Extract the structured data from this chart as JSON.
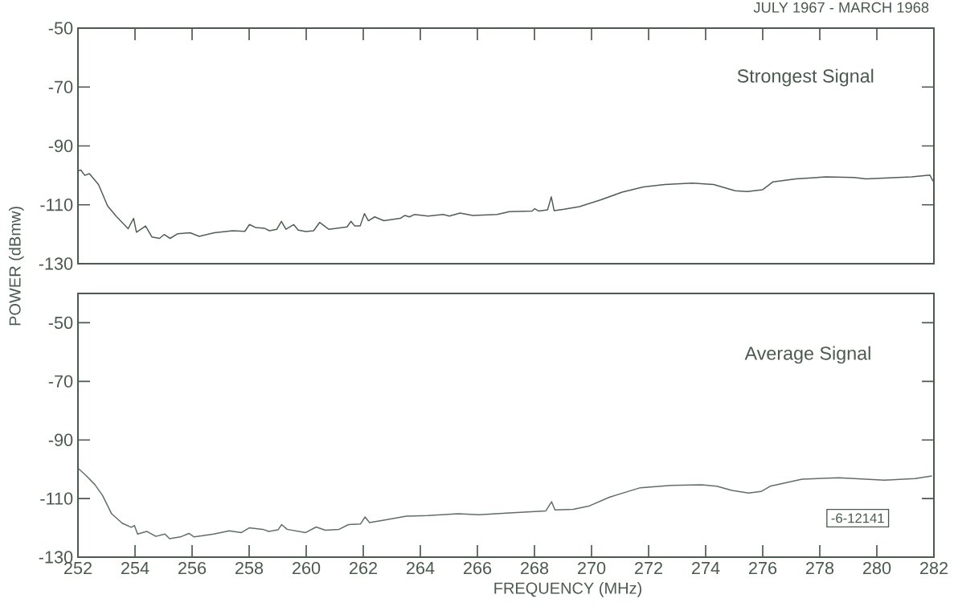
{
  "chart_data": [
    {
      "type": "line",
      "title": "JULY 1967 - MARCH 1968",
      "ylabel": "POWER (dBmw)",
      "annotations": [
        "Strongest Signal"
      ],
      "xlim": [
        252,
        282
      ],
      "ylim": [
        -130,
        -50
      ],
      "xticks": [
        252,
        254,
        256,
        258,
        260,
        262,
        264,
        266,
        268,
        270,
        272,
        274,
        276,
        278,
        280,
        282
      ],
      "yticks": [
        -130,
        -110,
        -90,
        -70,
        -50
      ],
      "tick_labels": "y",
      "series": [
        {
          "color": "#4f5f55",
          "x": [
            252.03,
            252.1,
            252.24,
            252.4,
            252.72,
            253.04,
            253.36,
            253.76,
            253.95,
            254.05,
            254.37,
            254.59,
            254.86,
            255.02,
            255.23,
            255.5,
            255.93,
            256.25,
            256.78,
            257.42,
            257.85,
            258.01,
            258.22,
            258.55,
            258.71,
            258.97,
            259.13,
            259.29,
            259.56,
            259.72,
            259.99,
            260.26,
            260.47,
            260.79,
            261.43,
            261.57,
            261.7,
            261.89,
            262.04,
            262.18,
            262.4,
            262.72,
            263.3,
            263.46,
            263.62,
            263.79,
            264.27,
            264.8,
            265.02,
            265.39,
            265.84,
            266.69,
            267.12,
            267.92,
            268.01,
            268.14,
            268.46,
            268.59,
            268.69,
            269.04,
            269.58,
            270.33,
            271.07,
            271.82,
            272.57,
            273.53,
            274.28,
            275.03,
            275.46,
            275.99,
            276.36,
            277.16,
            278.23,
            279.19,
            279.62,
            280.58,
            281.22,
            281.86,
            281.97
          ],
          "values": [
            -98.4,
            -98.2,
            -100,
            -99.4,
            -103.1,
            -110.4,
            -114.1,
            -118.1,
            -114.6,
            -119.3,
            -117.2,
            -120.9,
            -121.4,
            -120.1,
            -121.4,
            -119.8,
            -119.5,
            -120.7,
            -119.5,
            -118.8,
            -119,
            -116.7,
            -117.7,
            -118,
            -118.8,
            -118.3,
            -115.6,
            -118.3,
            -116.7,
            -118.6,
            -119.1,
            -118.8,
            -116,
            -118.3,
            -117.5,
            -115.6,
            -117.2,
            -117.2,
            -113,
            -115.4,
            -114.1,
            -115.4,
            -114.6,
            -113.6,
            -114.1,
            -113.3,
            -113.8,
            -113.3,
            -113.8,
            -112.8,
            -113.6,
            -113.3,
            -112.3,
            -112.1,
            -111.3,
            -112.1,
            -111.7,
            -107.3,
            -112,
            -111.5,
            -110.6,
            -108.3,
            -105.7,
            -103.9,
            -103.1,
            -102.6,
            -103.1,
            -105.2,
            -105.5,
            -104.9,
            -102.2,
            -101.2,
            -100.5,
            -100.7,
            -101.2,
            -100.8,
            -100.5,
            -99.9,
            -102
          ]
        }
      ]
    },
    {
      "type": "line",
      "xlabel": "FREQUENCY (MHz)",
      "annotations": [
        "Average Signal",
        "-6-12141"
      ],
      "xlim": [
        252,
        282
      ],
      "ylim": [
        -130,
        -40
      ],
      "xticks": [
        252,
        254,
        256,
        258,
        260,
        262,
        264,
        266,
        268,
        270,
        272,
        274,
        276,
        278,
        280,
        282
      ],
      "yticks": [
        -130,
        -110,
        -90,
        -70,
        -50
      ],
      "series": [
        {
          "color": "#5f6f65",
          "x": [
            252.03,
            252.27,
            252.59,
            252.86,
            253.18,
            253.55,
            253.87,
            253.98,
            254.09,
            254.41,
            254.73,
            255.05,
            255.21,
            255.59,
            255.89,
            256.07,
            256.76,
            257.3,
            257.73,
            258,
            258.48,
            258.69,
            259.01,
            259.14,
            259.33,
            259.98,
            260.35,
            260.67,
            261.15,
            261.48,
            261.9,
            262.06,
            262.22,
            262.76,
            263.51,
            264.26,
            265.33,
            266.06,
            267.12,
            268.4,
            268.6,
            268.72,
            269.36,
            269.9,
            270.64,
            271.71,
            272.78,
            273.85,
            274.39,
            274.92,
            275.51,
            275.94,
            276.26,
            277.38,
            278.67,
            280.27,
            281.34,
            281.93
          ],
          "values": [
            -99.9,
            -102,
            -105.2,
            -108.9,
            -115.2,
            -118.4,
            -119.8,
            -119.2,
            -122.1,
            -121.2,
            -122.9,
            -122.1,
            -123.7,
            -123.1,
            -121.9,
            -123.1,
            -122.1,
            -121,
            -121.6,
            -120,
            -120.5,
            -121.2,
            -120.7,
            -118.9,
            -120.5,
            -121.6,
            -119.7,
            -120.8,
            -120.5,
            -118.9,
            -118.7,
            -116.3,
            -118.2,
            -117.3,
            -116,
            -115.8,
            -115.2,
            -115.5,
            -114.9,
            -114.2,
            -111.1,
            -113.9,
            -113.7,
            -112.6,
            -109.5,
            -106.3,
            -105.5,
            -105.3,
            -105.8,
            -107.2,
            -108.1,
            -107.6,
            -105.8,
            -103.4,
            -102.9,
            -103.7,
            -103.2,
            -102.3
          ]
        }
      ]
    }
  ]
}
